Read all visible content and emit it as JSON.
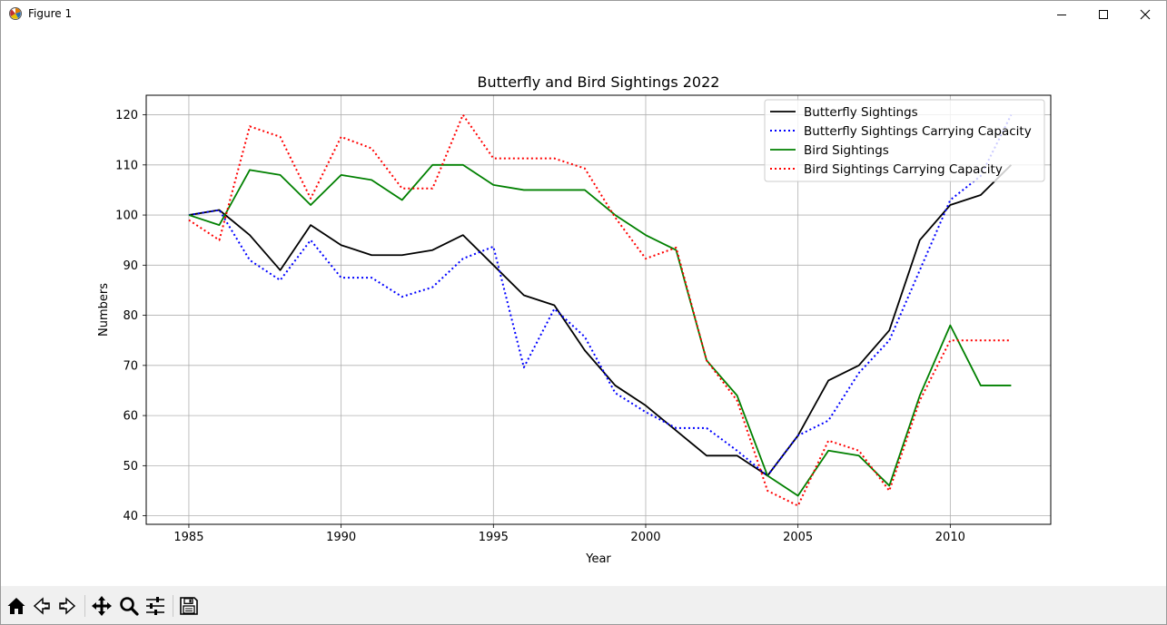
{
  "window": {
    "title": "Figure 1",
    "icon": "matplotlib-icon",
    "controls": [
      "minimize-icon",
      "maximize-icon",
      "close-icon"
    ]
  },
  "toolbar": {
    "buttons": [
      {
        "name": "home-button",
        "icon": "home-icon",
        "tooltip": "Reset original view"
      },
      {
        "name": "back-button",
        "icon": "back-arrow-icon",
        "tooltip": "Back"
      },
      {
        "name": "forward-button",
        "icon": "forward-arrow-icon",
        "tooltip": "Forward"
      },
      {
        "name": "pan-button",
        "icon": "move-icon",
        "tooltip": "Pan"
      },
      {
        "name": "zoom-button",
        "icon": "magnifier-icon",
        "tooltip": "Zoom"
      },
      {
        "name": "subplots-button",
        "icon": "sliders-icon",
        "tooltip": "Configure subplots"
      },
      {
        "name": "save-button",
        "icon": "floppy-icon",
        "tooltip": "Save"
      }
    ]
  },
  "chart_data": {
    "type": "line",
    "title": "Butterfly and Bird Sightings 2022",
    "xlabel": "Year",
    "ylabel": "Numbers",
    "xlim": [
      1983.6,
      2013.3
    ],
    "ylim": [
      38.3,
      123.9
    ],
    "xticks": [
      "1985",
      "1990",
      "1995",
      "2000",
      "2005",
      "2010"
    ],
    "yticks": [
      "40",
      "50",
      "60",
      "70",
      "80",
      "90",
      "100",
      "110",
      "120"
    ],
    "grid": true,
    "legend_position": "top-right",
    "x": [
      1985,
      1986,
      1987,
      1988,
      1989,
      1990,
      1991,
      1992,
      1993,
      1994,
      1995,
      1996,
      1997,
      1998,
      1999,
      2000,
      2001,
      2002,
      2003,
      2004,
      2005,
      2006,
      2007,
      2008,
      2009,
      2010,
      2011,
      2012
    ],
    "series": [
      {
        "name": "Butterfly Sightings",
        "color": "#000000",
        "style": "solid",
        "values": [
          100,
          101,
          96,
          89,
          98,
          94,
          92,
          92,
          93,
          96,
          90,
          84,
          82,
          73,
          66,
          62,
          57,
          52,
          52,
          48,
          56,
          67,
          70,
          77,
          95,
          102,
          104,
          110
        ]
      },
      {
        "name": "Butterfly Sightings Carrying Capacity",
        "color": "#0000ff",
        "style": "dotted",
        "values": [
          100,
          101,
          91,
          87,
          95,
          87.5,
          87.5,
          83.7,
          85.6,
          91.3,
          93.7,
          69.6,
          81.3,
          75.7,
          64.5,
          60.7,
          57.5,
          57.5,
          53,
          48,
          56,
          59,
          68.5,
          75,
          89,
          103,
          107.8,
          120
        ]
      },
      {
        "name": "Bird Sightings",
        "color": "#008000",
        "style": "solid",
        "values": [
          100,
          98,
          109,
          108,
          102,
          108,
          107,
          103,
          110,
          110,
          106,
          105,
          105,
          105,
          100,
          96,
          93,
          71,
          64,
          48,
          44,
          53,
          52,
          46,
          64,
          78,
          66,
          66
        ]
      },
      {
        "name": "Bird Sightings Carrying Capacity",
        "color": "#ff0000",
        "style": "dotted",
        "values": [
          99,
          95,
          117.7,
          115.6,
          103.3,
          115.6,
          113.3,
          105.3,
          105.3,
          120,
          111.3,
          111.3,
          111.3,
          109.3,
          99.5,
          91.3,
          93.5,
          71,
          63,
          45,
          42,
          55,
          53,
          45,
          63,
          75,
          75,
          75
        ]
      }
    ]
  }
}
